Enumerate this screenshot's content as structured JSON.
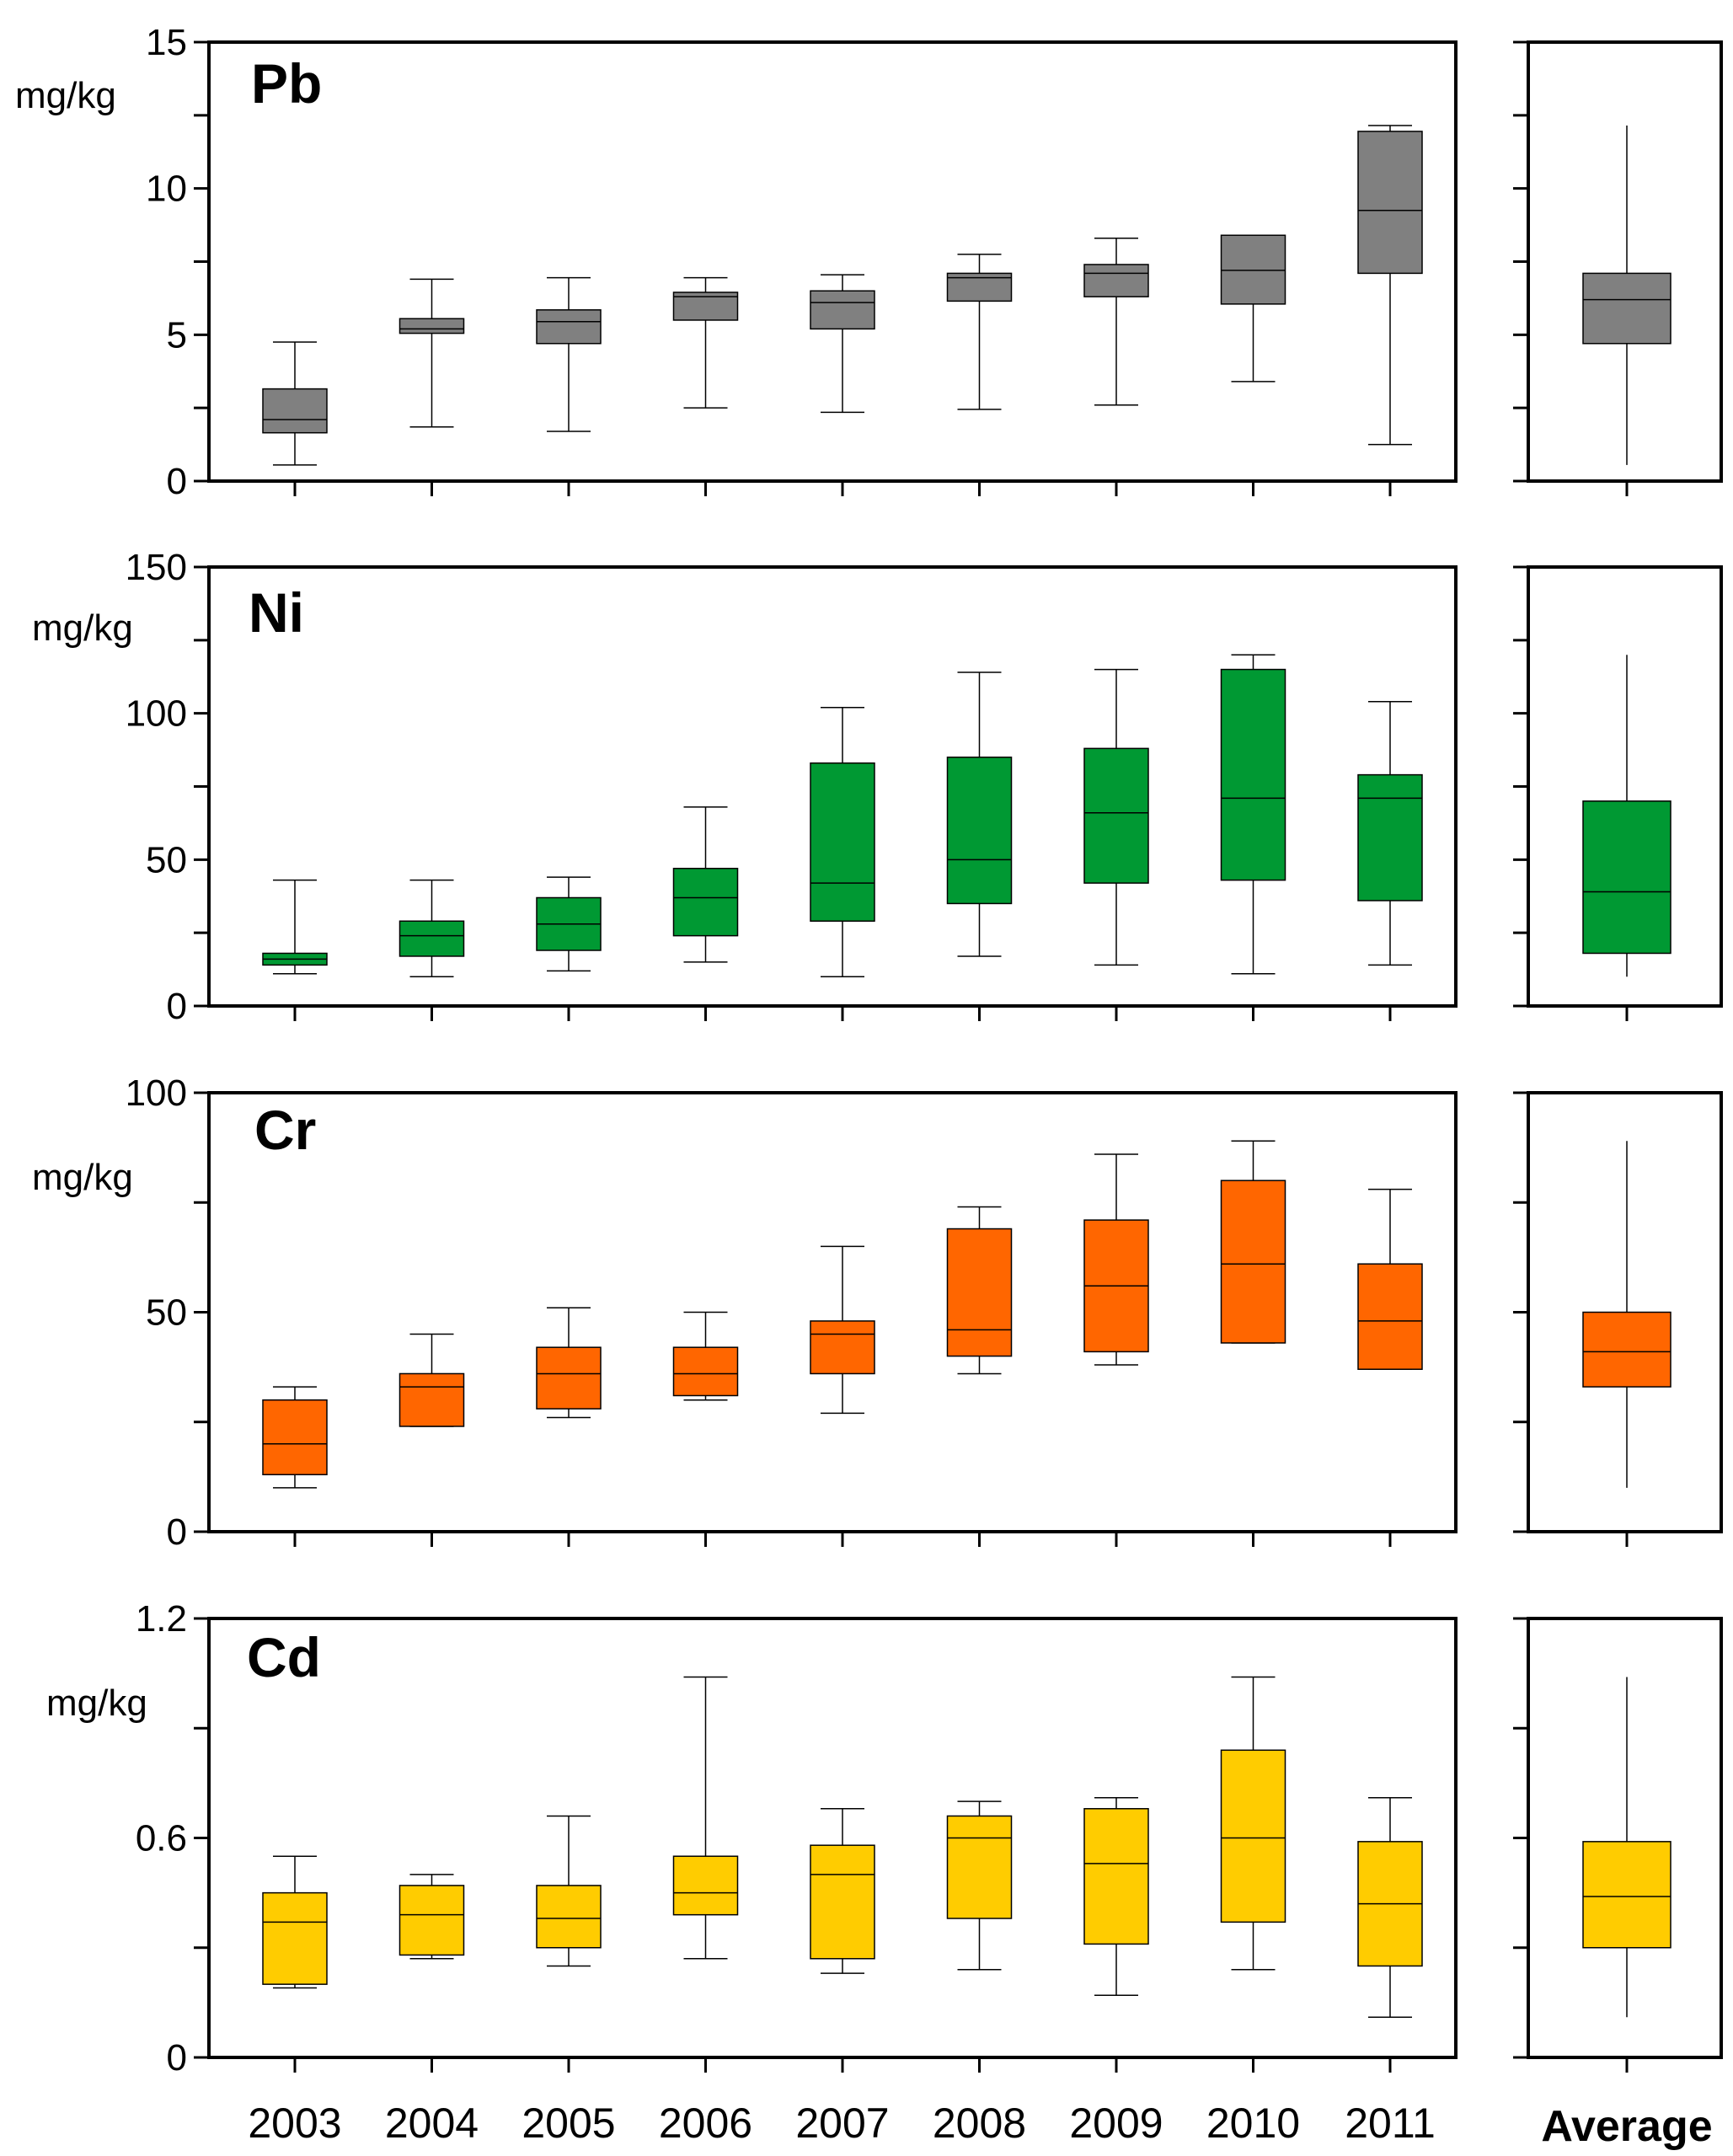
{
  "chart_data": [
    {
      "type": "box",
      "element": "Pb",
      "unit": "mg/kg",
      "ylim": [
        0,
        15
      ],
      "yticks": [
        0,
        5,
        10,
        15
      ],
      "categories": [
        "2003",
        "2004",
        "2005",
        "2006",
        "2007",
        "2008",
        "2009",
        "2010",
        "2011"
      ],
      "color": "#808080",
      "boxes": [
        {
          "min": 0.55,
          "q1": 1.65,
          "median": 2.1,
          "q3": 3.15,
          "max": 4.75
        },
        {
          "min": 1.85,
          "q1": 5.05,
          "median": 5.2,
          "q3": 5.55,
          "max": 6.9
        },
        {
          "min": 1.7,
          "q1": 4.7,
          "median": 5.45,
          "q3": 5.85,
          "max": 6.95
        },
        {
          "min": 2.5,
          "q1": 5.5,
          "median": 6.3,
          "q3": 6.45,
          "max": 6.95
        },
        {
          "min": 2.35,
          "q1": 5.2,
          "median": 6.1,
          "q3": 6.5,
          "max": 7.05
        },
        {
          "min": 2.45,
          "q1": 6.15,
          "median": 6.95,
          "q3": 7.1,
          "max": 7.75
        },
        {
          "min": 2.6,
          "q1": 6.3,
          "median": 7.1,
          "q3": 7.4,
          "max": 8.3
        },
        {
          "min": 3.4,
          "q1": 6.05,
          "median": 7.2,
          "q3": 8.4,
          "max": 8.4
        },
        {
          "min": 1.25,
          "q1": 7.1,
          "median": 9.25,
          "q3": 11.95,
          "max": 12.15
        }
      ],
      "average": {
        "min": 0.55,
        "q1": 4.7,
        "median": 6.2,
        "q3": 7.1,
        "max": 12.15
      }
    },
    {
      "type": "box",
      "element": "Ni",
      "unit": "mg/kg",
      "ylim": [
        0,
        150
      ],
      "yticks": [
        0,
        50,
        100,
        150
      ],
      "categories": [
        "2003",
        "2004",
        "2005",
        "2006",
        "2007",
        "2008",
        "2009",
        "2010",
        "2011"
      ],
      "color": "#009933",
      "boxes": [
        {
          "min": 11,
          "q1": 14,
          "median": 16,
          "q3": 18,
          "max": 43
        },
        {
          "min": 10,
          "q1": 17,
          "median": 24,
          "q3": 29,
          "max": 43
        },
        {
          "min": 12,
          "q1": 19,
          "median": 28,
          "q3": 37,
          "max": 44
        },
        {
          "min": 15,
          "q1": 24,
          "median": 37,
          "q3": 47,
          "max": 68
        },
        {
          "min": 10,
          "q1": 29,
          "median": 42,
          "q3": 83,
          "max": 102
        },
        {
          "min": 17,
          "q1": 35,
          "median": 50,
          "q3": 85,
          "max": 114
        },
        {
          "min": 14,
          "q1": 42,
          "median": 66,
          "q3": 88,
          "max": 115
        },
        {
          "min": 11,
          "q1": 43,
          "median": 71,
          "q3": 115,
          "max": 120
        },
        {
          "min": 14,
          "q1": 36,
          "median": 71,
          "q3": 79,
          "max": 104
        }
      ],
      "average": {
        "min": 10,
        "q1": 18,
        "median": 39,
        "q3": 70,
        "max": 120
      }
    },
    {
      "type": "box",
      "element": "Cr",
      "unit": "mg/kg",
      "ylim": [
        0,
        100
      ],
      "yticks": [
        0,
        50,
        100
      ],
      "categories": [
        "2003",
        "2004",
        "2005",
        "2006",
        "2007",
        "2008",
        "2009",
        "2010",
        "2011"
      ],
      "color": "#ff6600",
      "boxes": [
        {
          "min": 10,
          "q1": 13,
          "median": 20,
          "q3": 30,
          "max": 33
        },
        {
          "min": 24,
          "q1": 24,
          "median": 33,
          "q3": 36,
          "max": 45
        },
        {
          "min": 26,
          "q1": 28,
          "median": 36,
          "q3": 42,
          "max": 51
        },
        {
          "min": 30,
          "q1": 31,
          "median": 36,
          "q3": 42,
          "max": 50
        },
        {
          "min": 27,
          "q1": 36,
          "median": 45,
          "q3": 48,
          "max": 65
        },
        {
          "min": 36,
          "q1": 40,
          "median": 46,
          "q3": 69,
          "max": 74
        },
        {
          "min": 38,
          "q1": 41,
          "median": 56,
          "q3": 71,
          "max": 86
        },
        {
          "min": 43,
          "q1": 43,
          "median": 61,
          "q3": 80,
          "max": 89
        },
        {
          "min": 37,
          "q1": 37,
          "median": 48,
          "q3": 61,
          "max": 78
        }
      ],
      "average": {
        "min": 10,
        "q1": 33,
        "median": 41,
        "q3": 50,
        "max": 89
      }
    },
    {
      "type": "box",
      "element": "Cd",
      "unit": "mg/kg",
      "ylim": [
        0,
        1.2
      ],
      "yticks": [
        0,
        0.6,
        1.2
      ],
      "ytick_labels": [
        "0",
        "0.6",
        "1.2"
      ],
      "categories": [
        "2003",
        "2004",
        "2005",
        "2006",
        "2007",
        "2008",
        "2009",
        "2010",
        "2011"
      ],
      "color": "#ffcc00",
      "boxes": [
        {
          "min": 0.19,
          "q1": 0.2,
          "median": 0.37,
          "q3": 0.45,
          "max": 0.55
        },
        {
          "min": 0.27,
          "q1": 0.28,
          "median": 0.39,
          "q3": 0.47,
          "max": 0.5
        },
        {
          "min": 0.25,
          "q1": 0.3,
          "median": 0.38,
          "q3": 0.47,
          "max": 0.66
        },
        {
          "min": 0.27,
          "q1": 0.39,
          "median": 0.45,
          "q3": 0.55,
          "max": 1.04
        },
        {
          "min": 0.23,
          "q1": 0.27,
          "median": 0.5,
          "q3": 0.58,
          "max": 0.68
        },
        {
          "min": 0.24,
          "q1": 0.38,
          "median": 0.6,
          "q3": 0.66,
          "max": 0.7
        },
        {
          "min": 0.17,
          "q1": 0.31,
          "median": 0.53,
          "q3": 0.68,
          "max": 0.71
        },
        {
          "min": 0.24,
          "q1": 0.37,
          "median": 0.6,
          "q3": 0.84,
          "max": 1.04
        },
        {
          "min": 0.11,
          "q1": 0.25,
          "median": 0.42,
          "q3": 0.59,
          "max": 0.71
        }
      ],
      "average": {
        "min": 0.11,
        "q1": 0.3,
        "median": 0.44,
        "q3": 0.59,
        "max": 1.04
      }
    }
  ],
  "x_axis": {
    "labels": [
      "2003",
      "2004",
      "2005",
      "2006",
      "2007",
      "2008",
      "2009",
      "2010",
      "2011"
    ],
    "average_label": "Average"
  }
}
